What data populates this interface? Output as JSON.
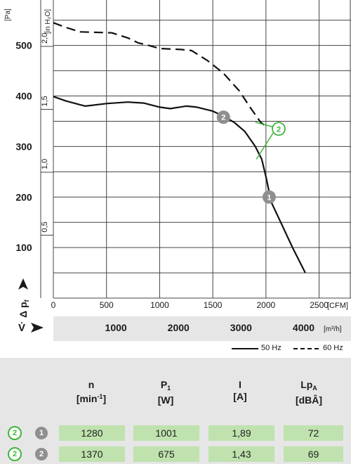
{
  "chart_data": {
    "type": "line",
    "y_unit": "[Pa]",
    "y2_unit": "[in H₂O]",
    "x_unit": "[CFM]",
    "x2_unit": "[m³/h]",
    "y_symbol": "Δ p",
    "y_symbol_sub": "f",
    "x2_symbol": "V̇",
    "x_ticks": [
      "0",
      "500",
      "1000",
      "1500",
      "2000",
      "2500"
    ],
    "x2_ticks": [
      "1000",
      "2000",
      "3000",
      "4000"
    ],
    "y_ticks": [
      "100",
      "200",
      "300",
      "400",
      "500"
    ],
    "y2_ticks": [
      "0,5",
      "1,0",
      "1,5",
      "2,0"
    ],
    "xlim": [
      0,
      2800
    ],
    "ylim": [
      0,
      590
    ],
    "series": [
      {
        "name": "50 Hz",
        "dash": "solid",
        "points": [
          [
            0,
            399
          ],
          [
            120,
            390
          ],
          [
            300,
            380
          ],
          [
            500,
            385
          ],
          [
            700,
            388
          ],
          [
            850,
            386
          ],
          [
            1000,
            378
          ],
          [
            1100,
            375
          ],
          [
            1250,
            380
          ],
          [
            1350,
            378
          ],
          [
            1500,
            370
          ],
          [
            1600,
            360
          ],
          [
            1700,
            348
          ],
          [
            1800,
            330
          ],
          [
            1900,
            300
          ],
          [
            1960,
            275
          ],
          [
            2000,
            240
          ],
          [
            2050,
            190
          ],
          [
            2150,
            145
          ],
          [
            2250,
            100
          ],
          [
            2370,
            50
          ]
        ]
      },
      {
        "name": "60 Hz",
        "dash": "dashed",
        "points": [
          [
            0,
            545
          ],
          [
            100,
            537
          ],
          [
            250,
            527
          ],
          [
            400,
            526
          ],
          [
            550,
            525
          ],
          [
            700,
            515
          ],
          [
            800,
            505
          ],
          [
            900,
            500
          ],
          [
            1000,
            494
          ],
          [
            1200,
            492
          ],
          [
            1300,
            490
          ],
          [
            1450,
            470
          ],
          [
            1600,
            445
          ],
          [
            1750,
            410
          ],
          [
            1850,
            378
          ],
          [
            1950,
            348
          ],
          [
            2000,
            340
          ]
        ]
      }
    ],
    "operating_points": [
      {
        "label": "1",
        "x": 2030,
        "y": 200,
        "style": "filled"
      },
      {
        "label": "2",
        "x": 1600,
        "y": 358,
        "style": "filled"
      },
      {
        "label": "2",
        "x": 2120,
        "y": 335,
        "style": "outline"
      }
    ]
  },
  "legend": {
    "solid_label": "50 Hz",
    "dashed_label": "60 Hz"
  },
  "table": {
    "columns": [
      {
        "label": "n",
        "unit": "[min",
        "unit_sup": "-1",
        "unit_end": "]"
      },
      {
        "label": "P",
        "label_sub": "1",
        "unit": "[W]"
      },
      {
        "label": "I",
        "unit": "[A]"
      },
      {
        "label": "Lp",
        "label_sub": "A",
        "unit": "[dBÂ]"
      }
    ],
    "rows": [
      {
        "badge_green": "2",
        "badge_gray": "1",
        "values": [
          "1280",
          "1001",
          "1,89",
          "72"
        ]
      },
      {
        "badge_green": "2",
        "badge_gray": "2",
        "values": [
          "1370",
          "675",
          "1,43",
          "69"
        ]
      }
    ]
  },
  "colors": {
    "panel": "#e6e6e6",
    "table_cell": "#bfe2ae",
    "accent_green": "#3fb53b",
    "marker_gray": "#8f8f8f"
  }
}
